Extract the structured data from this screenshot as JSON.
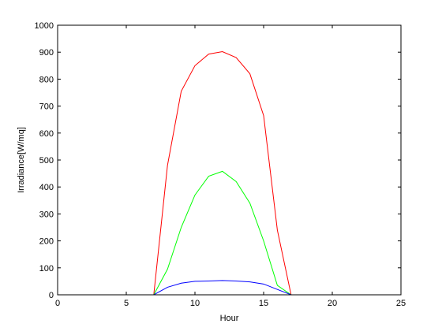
{
  "chart_data": {
    "type": "line",
    "title": "",
    "xlabel": "Hour",
    "ylabel": "Irradiance[W/mq]",
    "xlim": [
      0,
      25
    ],
    "ylim": [
      0,
      1000
    ],
    "xticks": [
      0,
      5,
      10,
      15,
      20,
      25
    ],
    "yticks": [
      0,
      100,
      200,
      300,
      400,
      500,
      600,
      700,
      800,
      900,
      1000
    ],
    "grid": false,
    "x": [
      1,
      2,
      3,
      4,
      5,
      6,
      7,
      8,
      9,
      10,
      11,
      12,
      13,
      14,
      15,
      16,
      17,
      18,
      19,
      20,
      21,
      22,
      23,
      24
    ],
    "series": [
      {
        "color": "#ff0000",
        "values": [
          0,
          0,
          0,
          0,
          0,
          0,
          0,
          480,
          755,
          850,
          893,
          902,
          880,
          820,
          665,
          240,
          0,
          0,
          0,
          0,
          0,
          0,
          0,
          0
        ]
      },
      {
        "color": "#00ff00",
        "values": [
          0,
          0,
          0,
          0,
          0,
          0,
          0,
          95,
          250,
          370,
          440,
          458,
          420,
          340,
          200,
          35,
          0,
          0,
          0,
          0,
          0,
          0,
          0,
          0
        ]
      },
      {
        "color": "#0000ff",
        "values": [
          0,
          0,
          0,
          0,
          0,
          0,
          0,
          28,
          43,
          50,
          51,
          53,
          51,
          48,
          40,
          20,
          0,
          0,
          0,
          0,
          0,
          0,
          0,
          0
        ]
      }
    ]
  }
}
